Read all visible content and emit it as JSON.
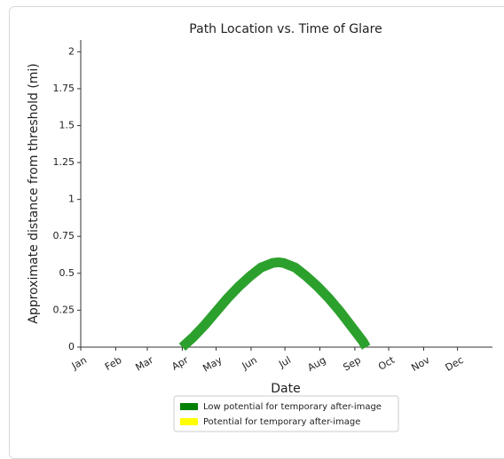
{
  "chart_data": {
    "type": "line",
    "title": "Path Location vs. Time of Glare",
    "xlabel": "Date",
    "ylabel": "Approximate distance from threshold (mi)",
    "xlim": [
      0,
      365
    ],
    "xticks": [
      {
        "value": 0,
        "label": "Jan"
      },
      {
        "value": 31,
        "label": "Feb"
      },
      {
        "value": 59,
        "label": "Mar"
      },
      {
        "value": 90,
        "label": "Apr"
      },
      {
        "value": 120,
        "label": "May"
      },
      {
        "value": 151,
        "label": "Jun"
      },
      {
        "value": 181,
        "label": "Jul"
      },
      {
        "value": 212,
        "label": "Aug"
      },
      {
        "value": 243,
        "label": "Sep"
      },
      {
        "value": 273,
        "label": "Oct"
      },
      {
        "value": 304,
        "label": "Nov"
      },
      {
        "value": 334,
        "label": "Dec"
      }
    ],
    "ylim": [
      0,
      2.08
    ],
    "yticks": [
      0,
      0.25,
      0.5,
      0.75,
      1,
      1.25,
      1.5,
      1.75,
      2
    ],
    "series": [
      {
        "name": "Low potential for temporary after-image",
        "color": "#2ca02c",
        "x": [
          90,
          100,
          110,
          120,
          130,
          140,
          150,
          160,
          170,
          175,
          180,
          190,
          200,
          210,
          220,
          230,
          240,
          250,
          253
        ],
        "values": [
          0,
          0.07,
          0.15,
          0.24,
          0.33,
          0.41,
          0.48,
          0.54,
          0.57,
          0.575,
          0.57,
          0.54,
          0.48,
          0.41,
          0.33,
          0.24,
          0.14,
          0.04,
          0
        ]
      }
    ],
    "legend": [
      {
        "name": "Low potential for temporary after-image",
        "color": "#008000"
      },
      {
        "name": "Potential for temporary after-image",
        "color": "#ffff00"
      }
    ]
  }
}
